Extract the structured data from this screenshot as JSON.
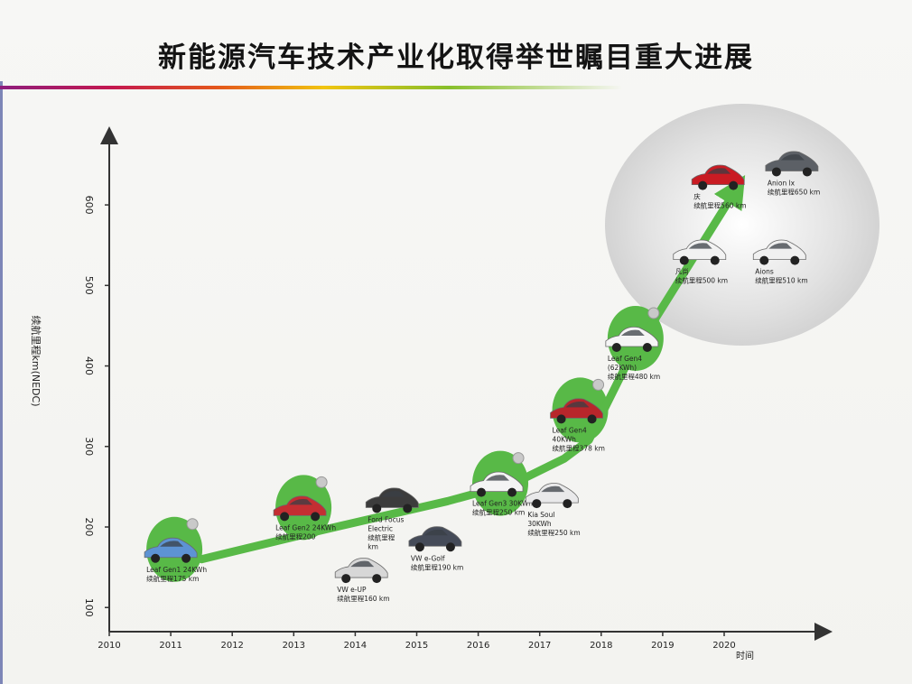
{
  "title": "新能源汽车技术产业化取得举世瞩目重大进展",
  "chart_data": {
    "type": "line",
    "ylabel": "续航里程km(NEDC)",
    "xlabel": "时间",
    "x_ticks": [
      "2010",
      "2011",
      "2012",
      "2013",
      "2014",
      "2015",
      "2016",
      "2017",
      "2018",
      "2019",
      "2020"
    ],
    "y_ticks": [
      100,
      200,
      300,
      400,
      500,
      600
    ],
    "xlim": [
      2010,
      2020
    ],
    "ylim": [
      70,
      720
    ],
    "grid": false,
    "trend": {
      "x": [
        2011.5,
        2013.4,
        2015.5,
        2016.6,
        2017.4,
        2017.8,
        2018.4,
        2020.2
      ],
      "y": [
        160,
        195,
        232,
        255,
        285,
        308,
        400,
        620
      ]
    },
    "highlight_color": "#58b947",
    "cars": [
      {
        "id": "leaf-gen1",
        "x": 2011.0,
        "y": 170,
        "lines": [
          "Leaf Gen1 24KWh",
          "续航里程175 km"
        ],
        "color": "#5d93d3",
        "circle": true,
        "caption_side": "below"
      },
      {
        "id": "leaf-gen2",
        "x": 2013.1,
        "y": 222,
        "lines": [
          "Leaf Gen2 24KWh",
          "续航里程200"
        ],
        "color": "#c42e32",
        "circle": true,
        "caption_side": "below"
      },
      {
        "id": "vw-e-up",
        "x": 2014.1,
        "y": 145,
        "lines": [
          "VW e-UP",
          "续航里程160 km"
        ],
        "color": "#d7d7d7",
        "circle": false,
        "caption_side": "below"
      },
      {
        "id": "ford-focus",
        "x": 2014.6,
        "y": 232,
        "lines": [
          "Ford Focus",
          "Electric",
          "续航里程",
          "km"
        ],
        "color": "#3c3c3c",
        "circle": false,
        "caption_side": "below"
      },
      {
        "id": "vw-e-golf",
        "x": 2015.3,
        "y": 184,
        "lines": [
          "VW e-Golf",
          "续航里程190 km"
        ],
        "color": "#454b58",
        "circle": false,
        "caption_side": "below"
      },
      {
        "id": "leaf-gen3",
        "x": 2016.3,
        "y": 252,
        "lines": [
          "Leaf Gen3 30KWh",
          "续航里程250 km"
        ],
        "color": "#f4f4f4",
        "circle": true,
        "caption_side": "below"
      },
      {
        "id": "kia-soul",
        "x": 2017.2,
        "y": 238,
        "lines": [
          "Kia Soul",
          "30KWh",
          "续航里程250 km"
        ],
        "color": "#e9e9ea",
        "circle": false,
        "caption_side": "below"
      },
      {
        "id": "leaf-gen4-40",
        "x": 2017.6,
        "y": 343,
        "lines": [
          "Leaf Gen4",
          "40KWh",
          "续航里程378 km"
        ],
        "color": "#b8262b",
        "circle": true,
        "caption_side": "below"
      },
      {
        "id": "leaf-gen4-62",
        "x": 2018.5,
        "y": 432,
        "lines": [
          "Leaf Gen4",
          "(62KWh)",
          "续航里程480 km"
        ],
        "color": "#f5f5f5",
        "circle": true,
        "caption_side": "below"
      },
      {
        "id": "car-red-sport",
        "x": 2019.9,
        "y": 633,
        "lines": [
          "庆",
          "续航里程560 km"
        ],
        "color": "#c91b23",
        "circle": false,
        "caption_side": "below"
      },
      {
        "id": "aion-lx",
        "x": 2021.1,
        "y": 650,
        "lines": [
          "Anion lx",
          "续航里程650 km"
        ],
        "color": "#5c6066",
        "circle": false,
        "caption_side": "below"
      },
      {
        "id": "car-white-sedan",
        "x": 2019.6,
        "y": 540,
        "lines": [
          "凡尚",
          "续航里程500 km"
        ],
        "color": "#f2f2f2",
        "circle": false,
        "caption_side": "below"
      },
      {
        "id": "aion-s",
        "x": 2020.9,
        "y": 540,
        "lines": [
          "Aions",
          "续航里程510 km"
        ],
        "color": "#f0f0f0",
        "circle": false,
        "caption_side": "below"
      }
    ]
  }
}
